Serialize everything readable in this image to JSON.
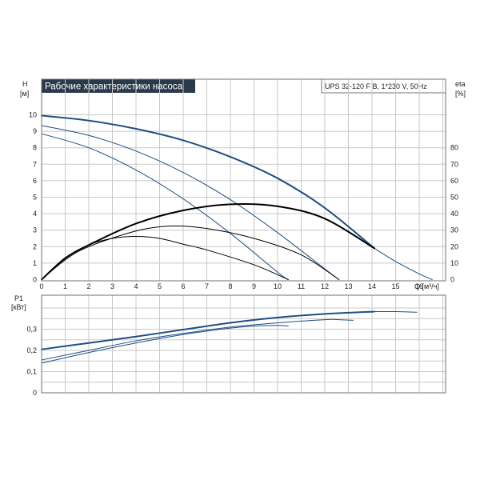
{
  "title": "Рабочие характеристики насоса",
  "model": "UPS 32-120 F B, 1*230 V, 50Hz",
  "colors": {
    "curve_blue": "#1f4e82",
    "eff_black": "#000000",
    "grid": "#c8c8c8",
    "title_bg": "#2b3a4a"
  },
  "chart_data": [
    {
      "type": "line",
      "title": "Рабочие характеристики насоса",
      "x_label": "Q [м³/ч]",
      "y_label_left": "H\n[м]",
      "y_label_right": "eta\n[%]",
      "xlim": [
        0,
        17
      ],
      "ylim": [
        0,
        10.5
      ],
      "y2lim": [
        0,
        100
      ],
      "x_ticks": [
        0,
        1,
        2,
        3,
        4,
        5,
        6,
        7,
        8,
        9,
        10,
        11,
        12,
        13,
        14,
        15,
        16
      ],
      "y_ticks": [
        0,
        1,
        2,
        3,
        4,
        5,
        6,
        7,
        8,
        9,
        10
      ],
      "y2_ticks": [
        0,
        10,
        20,
        30,
        40,
        50,
        60,
        70,
        80
      ],
      "grid": true,
      "series": [
        {
          "name": "",
          "axis": "left",
          "color": "#1f4e82",
          "width": 2,
          "x": [
            0,
            2,
            4,
            6,
            8,
            10,
            12,
            14.1
          ],
          "y": [
            9.95,
            9.65,
            9.15,
            8.45,
            7.45,
            6.15,
            4.35,
            1.9
          ]
        },
        {
          "name": "",
          "axis": "left",
          "color": "#1f4e82",
          "width": 1,
          "x": [
            14.1,
            15,
            16,
            16.55
          ],
          "y": [
            1.9,
            1.1,
            0.35,
            0
          ]
        },
        {
          "name": "",
          "axis": "left",
          "color": "#1f4e82",
          "width": 1,
          "x": [
            0,
            2,
            4,
            6,
            8,
            10,
            12,
            12.6
          ],
          "y": [
            9.35,
            8.75,
            7.8,
            6.5,
            4.85,
            2.85,
            0.65,
            0
          ]
        },
        {
          "name": "",
          "axis": "left",
          "color": "#1f4e82",
          "width": 1,
          "x": [
            0,
            2,
            4,
            6,
            8,
            10,
            10.45
          ],
          "y": [
            8.85,
            8.0,
            6.65,
            4.9,
            2.8,
            0.45,
            0
          ]
        },
        {
          "name": "",
          "axis": "right",
          "color": "#000000",
          "width": 2,
          "x": [
            0,
            1,
            2,
            4,
            6,
            8,
            10,
            12,
            14.1
          ],
          "y": [
            0,
            13,
            21,
            34,
            42,
            45.7,
            44.5,
            37,
            19
          ]
        },
        {
          "name": "",
          "axis": "right",
          "color": "#000000",
          "width": 1,
          "x": [
            0,
            1,
            2,
            4,
            5.5,
            7,
            9,
            11,
            12.6
          ],
          "y": [
            0,
            12,
            20,
            29.5,
            32.5,
            31,
            25,
            15,
            0
          ]
        },
        {
          "name": "",
          "axis": "right",
          "color": "#000000",
          "width": 1,
          "x": [
            0,
            1,
            2,
            3,
            4,
            5,
            6,
            7,
            9,
            10.45
          ],
          "y": [
            0,
            13,
            21,
            25,
            26.2,
            25,
            21.5,
            18,
            9,
            0
          ]
        }
      ]
    },
    {
      "type": "line",
      "title": "",
      "x_label": "",
      "y_label_left": "P1\n[кВт]",
      "xlim": [
        0,
        17
      ],
      "ylim": [
        0,
        0.43
      ],
      "y_ticks": [
        0,
        0.1,
        0.2,
        0.3
      ],
      "y_tick_labels": [
        "0",
        "0,1",
        "0,2",
        "0,3"
      ],
      "x_ticks": [
        0,
        1,
        2,
        3,
        4,
        5,
        6,
        7,
        8,
        9,
        10,
        11,
        12,
        13,
        14,
        15,
        16
      ],
      "grid": true,
      "series": [
        {
          "name": "",
          "color": "#1f4e82",
          "width": 2,
          "x": [
            0,
            2,
            4,
            6,
            8,
            10,
            12,
            14.1
          ],
          "y": [
            0.205,
            0.235,
            0.265,
            0.298,
            0.33,
            0.355,
            0.372,
            0.383
          ]
        },
        {
          "name": "",
          "color": "#1f4e82",
          "width": 1,
          "x": [
            14.1,
            15,
            15.9
          ],
          "y": [
            0.383,
            0.383,
            0.38
          ]
        },
        {
          "name": "",
          "color": "#1f4e82",
          "width": 1,
          "x": [
            0,
            2,
            4,
            6,
            8,
            10,
            12,
            12.6
          ],
          "y": [
            0.155,
            0.2,
            0.245,
            0.28,
            0.31,
            0.33,
            0.345,
            0.345
          ]
        },
        {
          "name": "",
          "color": "#1f4e82",
          "width": 1,
          "x": [
            0,
            2,
            4,
            6,
            8,
            9,
            10,
            10.45
          ],
          "y": [
            0.14,
            0.19,
            0.235,
            0.275,
            0.305,
            0.315,
            0.318,
            0.315
          ]
        },
        {
          "name": "",
          "color": "#1f4e82",
          "width": 1,
          "x": [
            12.6,
            13.2
          ],
          "y": [
            0.345,
            0.342
          ]
        }
      ]
    }
  ]
}
